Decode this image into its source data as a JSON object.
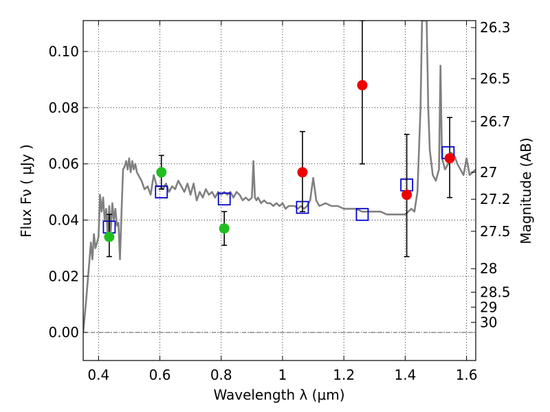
{
  "chart_data": {
    "type": "scatter",
    "title": "",
    "xlabel": "Wavelength  λ (μm)",
    "ylabel": "Flux  Fν  ( μJy )",
    "y2label": "Magnitude (AB)",
    "xlim": [
      0.35,
      1.63
    ],
    "ylim": [
      -0.01,
      0.111
    ],
    "grid": true,
    "x_ticks": [
      0.4,
      0.6,
      0.8,
      1.0,
      1.2,
      1.4,
      1.6
    ],
    "x_tick_labels": [
      "0.4",
      "0.6",
      "0.8",
      "1",
      "1.2",
      "1.4",
      "1.6"
    ],
    "y_ticks": [
      0.0,
      0.02,
      0.04,
      0.06,
      0.08,
      0.1
    ],
    "y_tick_labels": [
      "0.00",
      "0.02",
      "0.04",
      "0.06",
      "0.08",
      "0.10"
    ],
    "y2_ticks": [
      {
        "label": "26.3",
        "flux": 0.1085
      },
      {
        "label": "26.5",
        "flux": 0.0903
      },
      {
        "label": "26.7",
        "flux": 0.0751
      },
      {
        "label": "27",
        "flux": 0.057
      },
      {
        "label": "27.2",
        "flux": 0.0474
      },
      {
        "label": "27.5",
        "flux": 0.036
      },
      {
        "label": "28",
        "flux": 0.0227
      },
      {
        "label": "28.5",
        "flux": 0.0143
      },
      {
        "label": "29",
        "flux": 0.009
      },
      {
        "label": "30",
        "flux": 0.0036
      }
    ],
    "zero_line": 0.0,
    "series": [
      {
        "kind": "line",
        "color": "#808080",
        "x": [
          0.35,
          0.36,
          0.37,
          0.375,
          0.38,
          0.385,
          0.39,
          0.395,
          0.4,
          0.405,
          0.41,
          0.415,
          0.42,
          0.425,
          0.43,
          0.435,
          0.44,
          0.445,
          0.45,
          0.455,
          0.46,
          0.465,
          0.47,
          0.475,
          0.48,
          0.485,
          0.49,
          0.495,
          0.5,
          0.505,
          0.51,
          0.515,
          0.52,
          0.525,
          0.53,
          0.54,
          0.55,
          0.56,
          0.57,
          0.58,
          0.59,
          0.6,
          0.61,
          0.62,
          0.63,
          0.64,
          0.65,
          0.66,
          0.67,
          0.68,
          0.69,
          0.7,
          0.71,
          0.72,
          0.73,
          0.74,
          0.75,
          0.76,
          0.77,
          0.78,
          0.79,
          0.8,
          0.81,
          0.82,
          0.83,
          0.84,
          0.85,
          0.86,
          0.87,
          0.88,
          0.89,
          0.9,
          0.905,
          0.91,
          0.915,
          0.92,
          0.93,
          0.94,
          0.95,
          0.96,
          0.97,
          0.98,
          0.99,
          1.0,
          1.01,
          1.02,
          1.03,
          1.04,
          1.05,
          1.06,
          1.07,
          1.08,
          1.09,
          1.1,
          1.11,
          1.12,
          1.14,
          1.16,
          1.18,
          1.2,
          1.22,
          1.24,
          1.26,
          1.28,
          1.3,
          1.32,
          1.34,
          1.36,
          1.38,
          1.4,
          1.42,
          1.43,
          1.44,
          1.45,
          1.455,
          1.46,
          1.465,
          1.47,
          1.475,
          1.48,
          1.49,
          1.5,
          1.51,
          1.515,
          1.52,
          1.53,
          1.54,
          1.55,
          1.56,
          1.57,
          1.58,
          1.59,
          1.6,
          1.61,
          1.62,
          1.63
        ],
        "y": [
          0.0,
          0.012,
          0.025,
          0.032,
          0.026,
          0.035,
          0.03,
          0.032,
          0.034,
          0.049,
          0.043,
          0.048,
          0.04,
          0.044,
          0.035,
          0.045,
          0.036,
          0.046,
          0.04,
          0.044,
          0.038,
          0.039,
          0.026,
          0.043,
          0.058,
          0.059,
          0.061,
          0.058,
          0.062,
          0.057,
          0.061,
          0.058,
          0.06,
          0.057,
          0.056,
          0.054,
          0.051,
          0.052,
          0.049,
          0.056,
          0.052,
          0.052,
          0.051,
          0.053,
          0.05,
          0.052,
          0.051,
          0.054,
          0.052,
          0.05,
          0.053,
          0.049,
          0.053,
          0.047,
          0.05,
          0.048,
          0.051,
          0.049,
          0.05,
          0.048,
          0.05,
          0.049,
          0.05,
          0.049,
          0.05,
          0.048,
          0.05,
          0.049,
          0.047,
          0.048,
          0.047,
          0.048,
          0.061,
          0.048,
          0.047,
          0.048,
          0.046,
          0.047,
          0.046,
          0.046,
          0.045,
          0.046,
          0.045,
          0.046,
          0.044,
          0.045,
          0.045,
          0.045,
          0.044,
          0.045,
          0.044,
          0.045,
          0.047,
          0.055,
          0.047,
          0.045,
          0.046,
          0.045,
          0.045,
          0.044,
          0.044,
          0.044,
          0.043,
          0.043,
          0.043,
          0.043,
          0.042,
          0.042,
          0.042,
          0.042,
          0.044,
          0.043,
          0.05,
          0.08,
          0.111,
          0.111,
          0.111,
          0.111,
          0.08,
          0.065,
          0.056,
          0.054,
          0.058,
          0.095,
          0.062,
          0.058,
          0.06,
          0.064,
          0.063,
          0.06,
          0.058,
          0.056,
          0.062,
          0.056,
          0.057,
          0.058
        ]
      },
      {
        "kind": "open-square",
        "color": "#0000cc",
        "x": [
          0.435,
          0.605,
          0.81,
          1.065,
          1.26,
          1.405,
          1.54
        ],
        "y": [
          0.0375,
          0.05,
          0.0475,
          0.0445,
          0.042,
          0.0525,
          0.064
        ]
      },
      {
        "kind": "point",
        "color": "#1fbf1f",
        "x": [
          0.435,
          0.605,
          0.81
        ],
        "y": [
          0.034,
          0.057,
          0.037
        ],
        "yerr_low": [
          0.027,
          0.051,
          0.031
        ],
        "yerr_high": [
          0.042,
          0.063,
          0.043
        ]
      },
      {
        "kind": "point",
        "color": "#ee0000",
        "x": [
          1.065,
          1.26,
          1.405,
          1.545
        ],
        "y": [
          0.057,
          0.088,
          0.049,
          0.062
        ],
        "yerr_low": [
          0.043,
          0.06,
          0.027,
          0.048
        ],
        "yerr_high": [
          0.0715,
          0.111,
          0.0705,
          0.0765
        ]
      }
    ]
  }
}
